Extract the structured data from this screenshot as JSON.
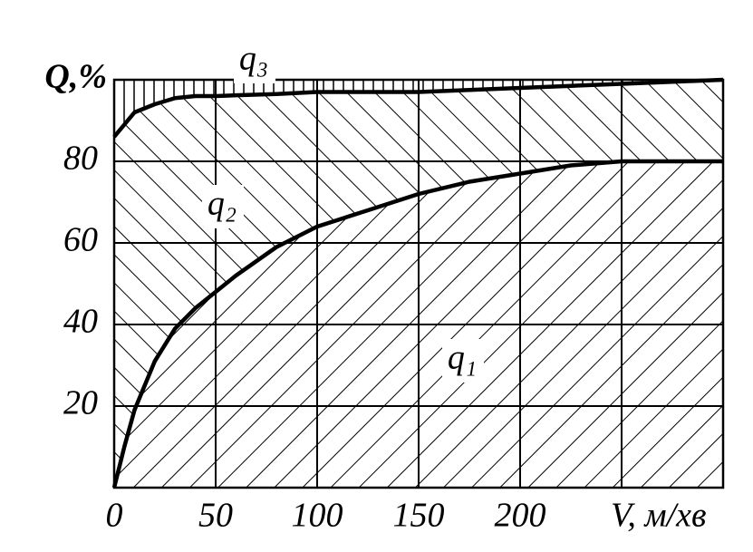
{
  "chart_data": {
    "type": "area",
    "x": [
      0,
      5,
      10,
      20,
      30,
      40,
      50,
      60,
      80,
      100,
      125,
      150,
      175,
      200,
      225,
      250,
      275,
      300
    ],
    "series": [
      {
        "name": "q₁",
        "color": "#000000",
        "hatch": "diagonal-up",
        "values": [
          0,
          10,
          19,
          31,
          39,
          44,
          48,
          52,
          59,
          64,
          68,
          72,
          75,
          77,
          79,
          80,
          80,
          80
        ]
      },
      {
        "name": "q₂",
        "color": "#000000",
        "hatch": "diagonal-down",
        "values": [
          86,
          89,
          92,
          94,
          95.5,
          96,
          96,
          96.2,
          96.5,
          97,
          97,
          97,
          97.5,
          98,
          98.5,
          99,
          99.5,
          100
        ]
      },
      {
        "name": "q₃",
        "color": "#000000",
        "hatch": "vertical",
        "values": [
          100,
          100,
          100,
          100,
          100,
          100,
          100,
          100,
          100,
          100,
          100,
          100,
          100,
          100,
          100,
          100,
          100,
          100
        ]
      }
    ],
    "xlim": [
      0,
      300
    ],
    "xticks": [
      0,
      50,
      100,
      150,
      200,
      {
        "value": 250,
        "label": "V, м/хв"
      }
    ],
    "ylim": [
      0,
      100
    ],
    "yticks": [
      0,
      20,
      40,
      60,
      80,
      {
        "value": 100,
        "label": "Q,%"
      }
    ],
    "grid": true
  }
}
